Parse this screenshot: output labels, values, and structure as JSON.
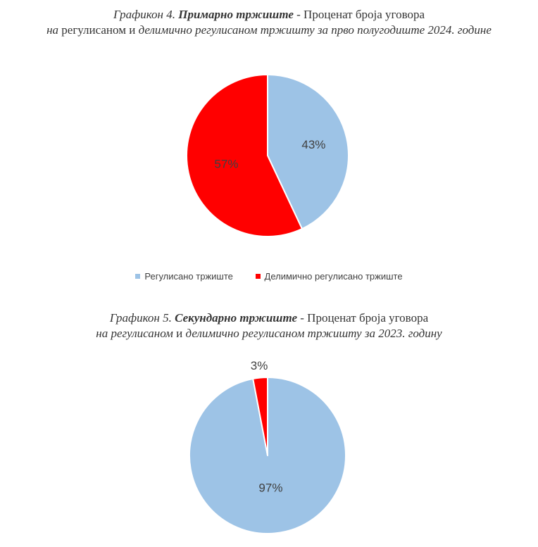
{
  "chart_data": [
    {
      "type": "pie",
      "caption": {
        "prefix": "Графикон 4.",
        "bold": "Примарно тржиште",
        "rest": "- Проценат броја уговора",
        "line2_a": "на",
        "line2_b": "регулисаном",
        "line2_c": "и",
        "line2_d": "делимично регулисаном тржишту за прво полугодиште 2024. године"
      },
      "slices": [
        {
          "name": "Регулисано тржиште",
          "value": 43,
          "label": "43%",
          "color": "#9dc3e6"
        },
        {
          "name": "Делимично регулисано тржиште",
          "value": 57,
          "label": "57%",
          "color": "#ff0000"
        }
      ],
      "legend": "bottom"
    },
    {
      "type": "pie",
      "caption": {
        "prefix": "Графикон 5.",
        "bold": "Секундарно тржиште",
        "rest": "- Проценат броја уговора",
        "line2_a": "на регулисаном",
        "line2_b": "и",
        "line2_c": "делимично регулисаном тржишту за 2023. годину"
      },
      "slices": [
        {
          "name": "Регулисано тржиште",
          "value": 97,
          "label": "97%",
          "color": "#9dc3e6"
        },
        {
          "name": "Делимично регулисано тржиште",
          "value": 3,
          "label": "3%",
          "color": "#ff0000"
        }
      ]
    }
  ],
  "legend": {
    "items": [
      {
        "label": "Регулисано тржиште",
        "color": "#9dc3e6"
      },
      {
        "label": "Делимично регулисано тржиште",
        "color": "#ff0000"
      }
    ]
  }
}
